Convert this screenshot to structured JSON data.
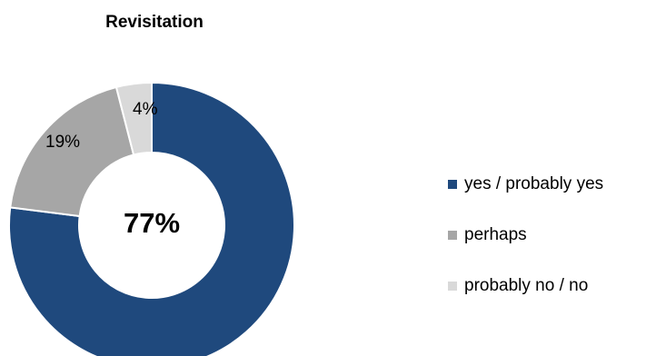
{
  "chart_data": {
    "type": "pie",
    "title": "Revisitation",
    "center_label": "77%",
    "categories": [
      "yes / probably yes",
      "perhaps",
      "probably no / no"
    ],
    "values": [
      77,
      19,
      4
    ],
    "value_labels": [
      "",
      "19%",
      "4%"
    ],
    "colors": [
      "#1F497D",
      "#A6A6A6",
      "#D9D9D9"
    ],
    "legend_position": "right",
    "donut": true
  }
}
